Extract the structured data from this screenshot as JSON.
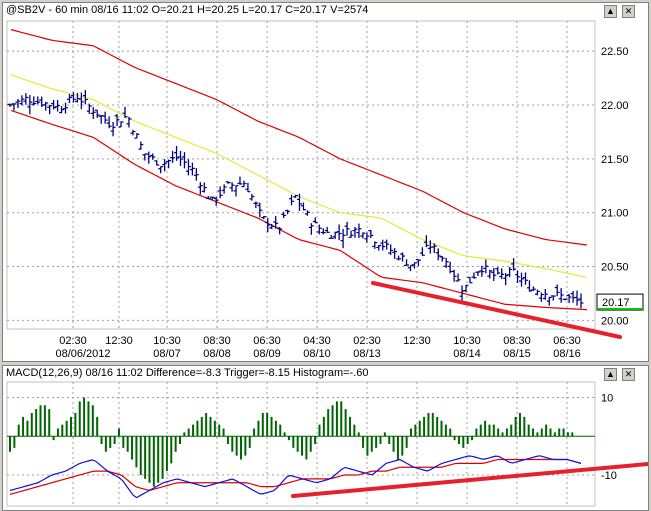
{
  "price_panel": {
    "header": "@SB2V - 60 min 08/16 11:02 O=20.21 H=20.25 L=20.17 C=20.17 V=2574",
    "last_price_label": "20.17",
    "buttons": {
      "up": "▲",
      "close": "✕"
    }
  },
  "macd_panel": {
    "header": "MACD(12,26,9) 08/16 11:02 Difference=-8.3 Trigger=-8.15 Histogram=-.60",
    "buttons": {
      "up": "▲",
      "close": "✕"
    }
  },
  "colors": {
    "bars": "#000080",
    "envelope": "#e00000",
    "average": "#e8e83a",
    "trendline": "#e8202a",
    "histogram": "#006400",
    "macd_line": "#1010e0",
    "trigger_line": "#e00000",
    "grid": "#a0a0a0"
  },
  "chart_data": [
    {
      "type": "ohlc",
      "title": "@SB2V - 60 min",
      "ylim": [
        19.92,
        22.78
      ],
      "yticks": [
        20.0,
        20.5,
        21.0,
        21.5,
        22.0,
        22.5
      ],
      "ytick_labels": [
        "20.00",
        "20.50",
        "21.00",
        "21.50",
        "22.00",
        "22.50"
      ],
      "x_time_labels": [
        "02:30",
        "12:30",
        "10:30",
        "08:30",
        "06:30",
        "04:30",
        "02:30",
        "12:30",
        "10:30",
        "08:30",
        "06:30"
      ],
      "x_date_labels": [
        "08/06/2012",
        "08/07",
        "08/08",
        "08/09",
        "08/10",
        "08/13",
        "08/14",
        "08/15",
        "08/16"
      ],
      "close_anchors": [
        22.0,
        22.06,
        22.02,
        21.98,
        22.08,
        21.95,
        21.82,
        21.9,
        21.55,
        21.45,
        21.52,
        21.38,
        21.1,
        21.25,
        21.28,
        20.95,
        20.85,
        21.15,
        20.9,
        20.8,
        20.82,
        20.85,
        20.72,
        20.62,
        20.5,
        20.7,
        20.55,
        20.28,
        20.5,
        20.4,
        20.45,
        20.3,
        20.25,
        20.22,
        20.17
      ],
      "upper_band_anchors": [
        22.7,
        22.6,
        22.55,
        22.35,
        22.2,
        22.05,
        21.85,
        21.7,
        21.5,
        21.35,
        21.2,
        21.0,
        20.85,
        20.75,
        20.7
      ],
      "middle_avg_anchors": [
        22.28,
        22.15,
        22.05,
        21.85,
        21.7,
        21.55,
        21.35,
        21.15,
        21.0,
        20.95,
        20.75,
        20.6,
        20.55,
        20.48,
        20.4
      ],
      "lower_band_anchors": [
        21.95,
        21.82,
        21.7,
        21.45,
        21.25,
        21.1,
        20.95,
        20.75,
        20.65,
        20.4,
        20.35,
        20.25,
        20.15,
        20.12,
        20.1
      ],
      "last_price": 20.17
    },
    {
      "type": "macd",
      "title": "MACD(12,26,9)",
      "ylim": [
        -18,
        14
      ],
      "ytick_labels": [
        "10",
        "-10"
      ],
      "difference": -8.3,
      "trigger": -8.15,
      "histogram_last": -0.6,
      "histogram_values": [
        -4,
        -3,
        3,
        5,
        4,
        6,
        7,
        8,
        8,
        7,
        -1,
        2,
        3,
        4,
        5,
        6,
        9,
        10,
        9,
        8,
        5,
        -2,
        -4,
        -3,
        -2,
        2,
        -3,
        -4,
        -6,
        -8,
        -10,
        -11,
        -12,
        -13,
        -12,
        -11,
        -9,
        -7,
        -4,
        -2,
        1,
        2,
        3,
        4,
        5,
        6,
        5,
        4,
        3,
        2,
        -2,
        -4,
        -5,
        -6,
        -5,
        -3,
        2,
        4,
        6,
        6,
        5,
        4,
        3,
        1,
        -1,
        -3,
        -4,
        -5,
        -6,
        -4,
        -2,
        3,
        5,
        7,
        8,
        9,
        9,
        7,
        5,
        3,
        1,
        -3,
        -5,
        -4,
        -3,
        -2,
        1,
        -2,
        -4,
        -6,
        -5,
        -3,
        2,
        3,
        4,
        5,
        6,
        6,
        5,
        4,
        3,
        2,
        -1,
        -2,
        -3,
        -2,
        -1,
        2,
        3,
        4,
        3,
        3,
        2,
        1,
        2,
        3,
        5,
        6,
        5,
        3,
        2,
        1,
        2,
        3,
        2,
        1,
        2,
        2,
        1,
        1,
        0,
        0
      ],
      "macd_anchors": [
        -14,
        -13,
        -12,
        -10,
        -9,
        -7,
        -6,
        -9,
        -11,
        -16,
        -14,
        -12,
        -11,
        -12,
        -13,
        -12,
        -11,
        -13,
        -15,
        -14,
        -10,
        -11,
        -12,
        -11,
        -8,
        -9,
        -10,
        -7,
        -6,
        -8,
        -9,
        -7,
        -6,
        -5,
        -6,
        -5,
        -7,
        -6,
        -5,
        -6,
        -6,
        -7
      ],
      "trigger_anchors": [
        -15,
        -14,
        -13,
        -12,
        -11,
        -10,
        -9,
        -9,
        -10,
        -13,
        -14,
        -13,
        -12,
        -12,
        -12,
        -12,
        -12,
        -12,
        -13,
        -13,
        -12,
        -11,
        -11,
        -11,
        -10,
        -10,
        -9,
        -9,
        -8,
        -8,
        -8,
        -8,
        -7,
        -7,
        -7,
        -6,
        -6,
        -6,
        -6,
        -6,
        -6,
        -7
      ]
    }
  ]
}
